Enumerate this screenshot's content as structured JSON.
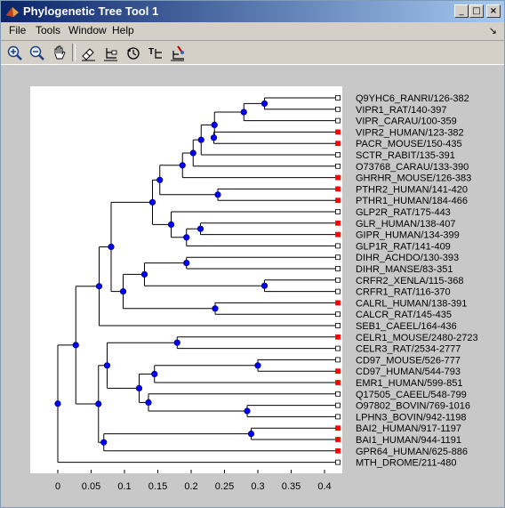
{
  "window": {
    "title": "Phylogenetic Tree Tool 1",
    "minimize": "_",
    "maximize": "□",
    "close": "×"
  },
  "menu": [
    "File",
    "Tools",
    "Window",
    "Help"
  ],
  "menu_arrow": "↘",
  "toolbar": {
    "buttons": [
      "zoom-in-icon",
      "zoom-out-icon",
      "pan-hand-icon",
      "inspect-tool-icon",
      "collapse-expand-icon",
      "rotate-branch-icon",
      "rename-icon",
      "prune-icon"
    ]
  },
  "tree": {
    "leaves": [
      {
        "label": "Q9YHC6_RANRI/126-382",
        "marker": "white"
      },
      {
        "label": "VIPR1_RAT/140-397",
        "marker": "white"
      },
      {
        "label": "VIPR_CARAU/100-359",
        "marker": "white"
      },
      {
        "label": "VIPR2_HUMAN/123-382",
        "marker": "red"
      },
      {
        "label": "PACR_MOUSE/150-435",
        "marker": "red"
      },
      {
        "label": "SCTR_RABIT/135-391",
        "marker": "white"
      },
      {
        "label": "O73768_CARAU/133-390",
        "marker": "white"
      },
      {
        "label": "GHRHR_MOUSE/126-383",
        "marker": "red"
      },
      {
        "label": "PTHR2_HUMAN/141-420",
        "marker": "red"
      },
      {
        "label": "PTHR1_HUMAN/184-466",
        "marker": "red"
      },
      {
        "label": "GLP2R_RAT/175-443",
        "marker": "white"
      },
      {
        "label": "GLR_HUMAN/138-407",
        "marker": "red"
      },
      {
        "label": "GIPR_HUMAN/134-399",
        "marker": "red"
      },
      {
        "label": "GLP1R_RAT/141-409",
        "marker": "white"
      },
      {
        "label": "DIHR_ACHDO/130-393",
        "marker": "white"
      },
      {
        "label": "DIHR_MANSE/83-351",
        "marker": "white"
      },
      {
        "label": "CRFR2_XENLA/115-368",
        "marker": "white"
      },
      {
        "label": "CRFR1_RAT/116-370",
        "marker": "white"
      },
      {
        "label": "CALRL_HUMAN/138-391",
        "marker": "red"
      },
      {
        "label": "CALCR_RAT/145-435",
        "marker": "white"
      },
      {
        "label": "SEB1_CAEEL/164-436",
        "marker": "white"
      },
      {
        "label": "CELR1_MOUSE/2480-2723",
        "marker": "red"
      },
      {
        "label": "CELR3_RAT/2534-2777",
        "marker": "white"
      },
      {
        "label": "CD97_MOUSE/526-777",
        "marker": "white"
      },
      {
        "label": "CD97_HUMAN/544-793",
        "marker": "red"
      },
      {
        "label": "EMR1_HUMAN/599-851",
        "marker": "red"
      },
      {
        "label": "Q17505_CAEEL/548-799",
        "marker": "white"
      },
      {
        "label": "O97802_BOVIN/769-1016",
        "marker": "white"
      },
      {
        "label": "LPHN3_BOVIN/942-1198",
        "marker": "white"
      },
      {
        "label": "BAI2_HUMAN/917-1197",
        "marker": "red"
      },
      {
        "label": "BAI1_HUMAN/944-1191",
        "marker": "red"
      },
      {
        "label": "GPR64_HUMAN/625-886",
        "marker": "red"
      },
      {
        "label": "MTH_DROME/211-480",
        "marker": "white"
      }
    ],
    "nodes": [
      {
        "id": "n1",
        "x": 0.31,
        "children": [
          0,
          1
        ]
      },
      {
        "id": "n2",
        "x": 0.279,
        "children": [
          "n1",
          2
        ]
      },
      {
        "id": "n3",
        "x": 0.234,
        "children": [
          3,
          4
        ]
      },
      {
        "id": "n4",
        "x": 0.235,
        "children": [
          "n2",
          "n3"
        ]
      },
      {
        "id": "n5",
        "x": 0.215,
        "children": [
          "n4",
          5
        ]
      },
      {
        "id": "n6",
        "x": 0.203,
        "children": [
          "n5",
          6
        ]
      },
      {
        "id": "n7",
        "x": 0.187,
        "children": [
          "n6",
          7
        ]
      },
      {
        "id": "n8",
        "x": 0.24,
        "children": [
          8,
          9
        ]
      },
      {
        "id": "n9",
        "x": 0.153,
        "children": [
          "n7",
          "n8"
        ]
      },
      {
        "id": "n10",
        "x": 0.214,
        "children": [
          11,
          12
        ]
      },
      {
        "id": "n11",
        "x": 0.193,
        "children": [
          "n10",
          13
        ]
      },
      {
        "id": "n12",
        "x": 0.17,
        "children": [
          10,
          "n11"
        ]
      },
      {
        "id": "n13",
        "x": 0.142,
        "children": [
          "n9",
          "n12"
        ]
      },
      {
        "id": "n14",
        "x": 0.193,
        "children": [
          14,
          15
        ]
      },
      {
        "id": "n15",
        "x": 0.31,
        "children": [
          16,
          17
        ]
      },
      {
        "id": "n16",
        "x": 0.13,
        "children": [
          "n14",
          "n15"
        ]
      },
      {
        "id": "n17",
        "x": 0.236,
        "children": [
          18,
          19
        ]
      },
      {
        "id": "n18",
        "x": 0.098,
        "children": [
          "n16",
          "n17"
        ]
      },
      {
        "id": "n19",
        "x": 0.08,
        "children": [
          "n13",
          "n18"
        ]
      },
      {
        "id": "n20",
        "x": 0.062,
        "children": [
          "n19",
          20
        ]
      },
      {
        "id": "n21",
        "x": 0.179,
        "children": [
          21,
          22
        ]
      },
      {
        "id": "n22",
        "x": 0.3,
        "children": [
          23,
          24
        ]
      },
      {
        "id": "n23",
        "x": 0.145,
        "children": [
          "n22",
          25
        ]
      },
      {
        "id": "n24",
        "x": 0.284,
        "children": [
          27,
          28
        ]
      },
      {
        "id": "n25",
        "x": 0.136,
        "children": [
          26,
          "n24"
        ]
      },
      {
        "id": "n26",
        "x": 0.122,
        "children": [
          "n23",
          "n25"
        ]
      },
      {
        "id": "n27",
        "x": 0.074,
        "children": [
          "n21",
          "n26"
        ]
      },
      {
        "id": "n28",
        "x": 0.29,
        "children": [
          29,
          30
        ]
      },
      {
        "id": "n29",
        "x": 0.069,
        "children": [
          "n28",
          31
        ]
      },
      {
        "id": "n30",
        "x": 0.061,
        "children": [
          "n27",
          "n29"
        ]
      },
      {
        "id": "n31",
        "x": 0.027,
        "children": [
          "n20",
          "n30"
        ]
      },
      {
        "id": "root",
        "x": 0.0,
        "children": [
          "n31",
          32
        ]
      }
    ],
    "leaf_x": 0.42,
    "xlim": [
      -0.04,
      0.42
    ],
    "ticks": [
      0,
      0.05,
      0.1,
      0.15,
      0.2,
      0.25,
      0.3,
      0.35,
      0.4
    ],
    "tick_labels": [
      "0",
      "0.05",
      "0.1",
      "0.15",
      "0.2",
      "0.25",
      "0.3",
      "0.35",
      "0.4"
    ],
    "colors": {
      "node": "#0000ff",
      "branch": "#000000",
      "leaf_red": "#ff0000",
      "leaf_white": "#ffffff"
    }
  }
}
